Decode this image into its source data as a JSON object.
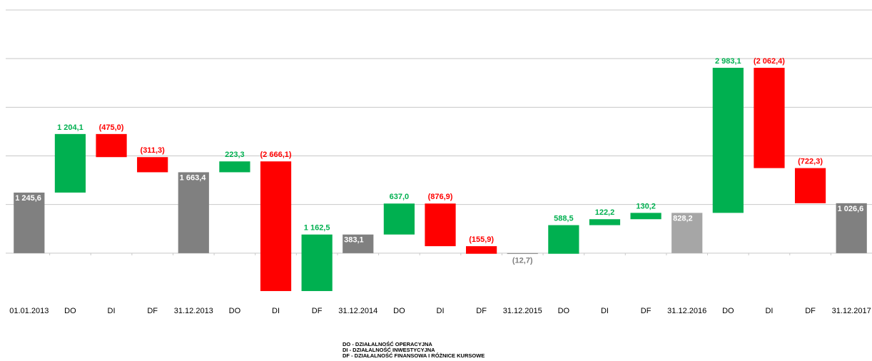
{
  "chart_data": {
    "type": "waterfall",
    "categories": [
      "01.01.2013",
      "DO",
      "DI",
      "DF",
      "31.12.2013",
      "DO",
      "DI",
      "DF",
      "31.12.2014",
      "DO",
      "DI",
      "DF",
      "31.12.2015",
      "DO",
      "DI",
      "DF",
      "31.12.2016",
      "DO",
      "DI",
      "DF",
      "31.12.2017"
    ],
    "values": [
      1245.6,
      1204.1,
      -475.0,
      -311.3,
      1663.4,
      223.3,
      -2666.1,
      1162.5,
      383.1,
      637.0,
      -876.9,
      -155.9,
      -12.7,
      588.5,
      122.2,
      130.2,
      828.2,
      2983.1,
      -2062.4,
      -722.3,
      1026.6
    ],
    "value_labels": [
      "1 245,6",
      "1 204,1",
      "(475,0)",
      "(311,3)",
      "1 663,4",
      "223,3",
      "(2 666,1)",
      "1 162,5",
      "383,1",
      "637,0",
      "(876,9)",
      "(155,9)",
      "(12,7)",
      "588,5",
      "122,2",
      "130,2",
      "828,2",
      "2 983,1",
      "(2 062,4)",
      "(722,3)",
      "1 026,6"
    ],
    "kinds": [
      "total",
      "delta",
      "delta",
      "delta",
      "total",
      "delta",
      "delta",
      "delta",
      "total",
      "delta",
      "delta",
      "delta",
      "total",
      "delta",
      "delta",
      "delta",
      "total",
      "delta",
      "delta",
      "delta",
      "total"
    ],
    "colors": [
      "#808080",
      "#00b050",
      "#ff0000",
      "#ff0000",
      "#808080",
      "#00b050",
      "#ff0000",
      "#00b050",
      "#808080",
      "#00b050",
      "#ff0000",
      "#ff0000",
      "#808080",
      "#00b050",
      "#00b050",
      "#00b050",
      "#a6a6a6",
      "#00b050",
      "#ff0000",
      "#ff0000",
      "#808080"
    ],
    "ylim": [
      -1000,
      5000
    ],
    "yticks": [
      0,
      1000,
      2000,
      3000,
      4000,
      5000
    ],
    "grid": true,
    "notes": [
      "DO - DZIAŁALNOŚĆ OPERACYJNA",
      "DI - DZIAŁALNOŚĆ INWESTYCYJNA",
      "DF - DZIAŁALNOŚĆ FINANSOWA I RÓŻNICE KURSOWE"
    ]
  }
}
